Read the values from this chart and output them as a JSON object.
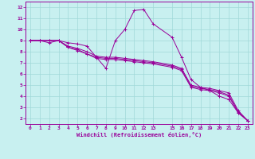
{
  "bg_color": "#c8f0f0",
  "line_color": "#990099",
  "grid_color": "#a0d8d8",
  "xlabel": "Windchill (Refroidissement éolien,°C)",
  "xlim_min": -0.5,
  "xlim_max": 23.5,
  "ylim_min": 1.5,
  "ylim_max": 12.5,
  "xticks": [
    0,
    1,
    2,
    3,
    4,
    5,
    6,
    7,
    8,
    9,
    10,
    11,
    12,
    13,
    15,
    16,
    17,
    18,
    19,
    20,
    21,
    22,
    23
  ],
  "yticks": [
    2,
    3,
    4,
    5,
    6,
    7,
    8,
    9,
    10,
    11,
    12
  ],
  "series": [
    {
      "x": [
        0,
        1,
        2,
        3,
        4,
        5,
        6,
        7,
        8,
        9,
        10,
        11,
        12,
        13,
        15,
        16,
        17,
        18,
        19,
        20,
        21,
        22,
        23
      ],
      "y": [
        9.0,
        9.0,
        8.8,
        9.0,
        8.8,
        8.7,
        8.5,
        7.5,
        6.5,
        9.0,
        10.0,
        11.7,
        11.8,
        10.5,
        9.3,
        7.5,
        5.5,
        4.8,
        4.5,
        4.0,
        3.7,
        2.5,
        1.8
      ]
    },
    {
      "x": [
        0,
        1,
        2,
        3,
        4,
        5,
        6,
        7,
        8,
        9,
        10,
        11,
        12,
        13,
        15,
        16,
        17,
        18,
        19,
        20,
        21,
        22,
        23
      ],
      "y": [
        9.0,
        9.0,
        9.0,
        9.0,
        8.5,
        8.3,
        8.0,
        7.6,
        7.5,
        7.5,
        7.4,
        7.3,
        7.2,
        7.1,
        6.8,
        6.5,
        5.0,
        4.8,
        4.7,
        4.5,
        4.3,
        2.7,
        1.8
      ]
    },
    {
      "x": [
        0,
        1,
        2,
        3,
        4,
        5,
        6,
        7,
        8,
        9,
        10,
        11,
        12,
        13,
        15,
        16,
        17,
        18,
        19,
        20,
        21,
        22,
        23
      ],
      "y": [
        9.0,
        9.0,
        9.0,
        9.0,
        8.4,
        8.2,
        7.8,
        7.5,
        7.4,
        7.4,
        7.3,
        7.2,
        7.1,
        7.0,
        6.7,
        6.4,
        4.9,
        4.7,
        4.6,
        4.4,
        4.1,
        2.6,
        1.8
      ]
    },
    {
      "x": [
        0,
        1,
        2,
        3,
        4,
        5,
        6,
        7,
        8,
        9,
        10,
        11,
        12,
        13,
        15,
        16,
        17,
        18,
        19,
        20,
        21,
        22,
        23
      ],
      "y": [
        9.0,
        9.0,
        9.0,
        9.0,
        8.4,
        8.1,
        7.8,
        7.4,
        7.3,
        7.3,
        7.2,
        7.1,
        7.0,
        6.9,
        6.6,
        6.3,
        4.8,
        4.6,
        4.5,
        4.3,
        4.0,
        2.5,
        1.8
      ]
    }
  ]
}
